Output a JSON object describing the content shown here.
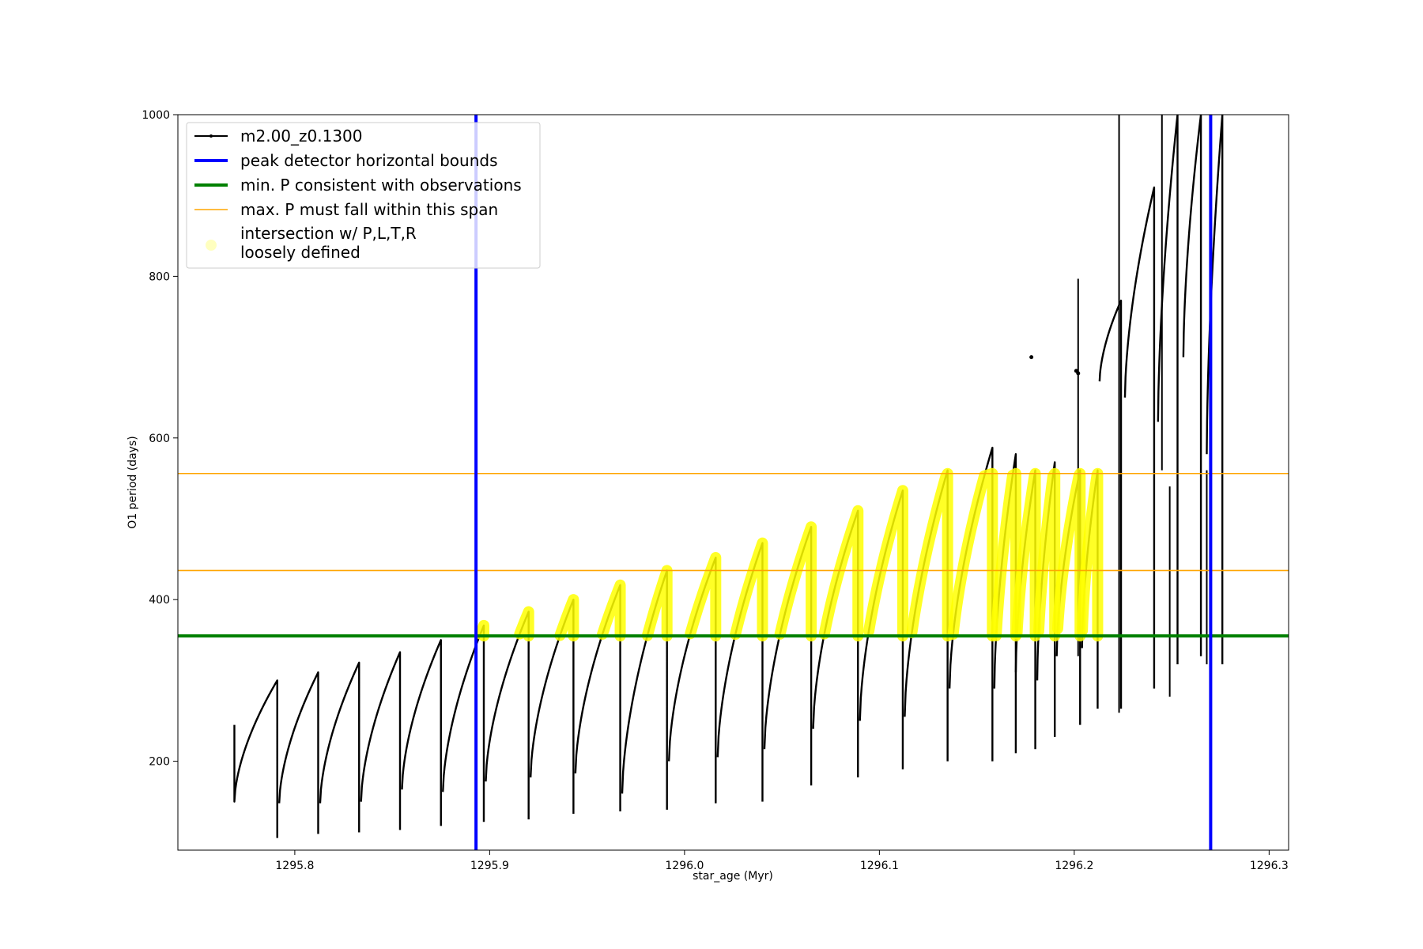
{
  "chart_data": {
    "type": "line",
    "title": "",
    "xlabel": "star_age (Myr)",
    "ylabel": "O1 period (days)",
    "xlim": [
      1295.74,
      1296.31
    ],
    "ylim": [
      90,
      1000
    ],
    "x_ticks": [
      1295.8,
      1295.9,
      1296.0,
      1296.1,
      1296.2,
      1296.3
    ],
    "x_tick_labels": [
      "1295.8",
      "1295.9",
      "1296.0",
      "1296.1",
      "1296.2",
      "1296.3"
    ],
    "y_ticks": [
      200,
      400,
      600,
      800,
      1000
    ],
    "y_tick_labels": [
      "200",
      "400",
      "600",
      "800",
      "1000"
    ],
    "grid": false,
    "legend_position": "top-left",
    "legend": [
      {
        "label": "m2.00_z0.1300",
        "style": "line-marker",
        "color": "#000000"
      },
      {
        "label": "peak detector horizontal bounds",
        "style": "thick-line",
        "color": "#0000ff"
      },
      {
        "label": "min. P consistent with observations",
        "style": "thick-line",
        "color": "#008000"
      },
      {
        "label": "max. P must fall within this span",
        "style": "thin-line",
        "color": "#ffa500"
      },
      {
        "label": "intersection w/ P,L,T,R",
        "label2": "loosely defined",
        "style": "circle-marker",
        "color": "#ffff00"
      }
    ],
    "vertical_lines": [
      {
        "x": 1295.893,
        "color": "#0000ff"
      },
      {
        "x": 1296.27,
        "color": "#0000ff"
      }
    ],
    "horizontal_lines": [
      {
        "y": 355,
        "color": "#008000"
      },
      {
        "y": 556,
        "color": "#ffa500"
      },
      {
        "y": 436,
        "color": "#ffa500"
      }
    ],
    "period_band": {
      "min": 355,
      "max": 556
    },
    "pulses": [
      {
        "x0": 1295.769,
        "x1": 1295.791,
        "y0": 150,
        "y1": 300,
        "y_start": 245,
        "y_drop": 105
      },
      {
        "x0": 1295.792,
        "x1": 1295.812,
        "y0": 148,
        "y1": 310,
        "y_drop": 110
      },
      {
        "x0": 1295.813,
        "x1": 1295.833,
        "y0": 148,
        "y1": 322,
        "y_drop": 112
      },
      {
        "x0": 1295.834,
        "x1": 1295.854,
        "y0": 150,
        "y1": 335,
        "y_drop": 115
      },
      {
        "x0": 1295.855,
        "x1": 1295.875,
        "y0": 165,
        "y1": 350,
        "y_drop": 120
      },
      {
        "x0": 1295.876,
        "x1": 1295.897,
        "y0": 162,
        "y1": 368,
        "y_drop": 125
      },
      {
        "x0": 1295.898,
        "x1": 1295.92,
        "y0": 175,
        "y1": 385,
        "y_drop": 128
      },
      {
        "x0": 1295.921,
        "x1": 1295.943,
        "y0": 180,
        "y1": 400,
        "y_drop": 135
      },
      {
        "x0": 1295.944,
        "x1": 1295.967,
        "y0": 185,
        "y1": 418,
        "y_drop": 138
      },
      {
        "x0": 1295.968,
        "x1": 1295.991,
        "y0": 160,
        "y1": 436,
        "y_drop": 140
      },
      {
        "x0": 1295.992,
        "x1": 1296.016,
        "y0": 200,
        "y1": 452,
        "y_drop": 148
      },
      {
        "x0": 1296.017,
        "x1": 1296.04,
        "y0": 205,
        "y1": 470,
        "y_drop": 150
      },
      {
        "x0": 1296.041,
        "x1": 1296.065,
        "y0": 215,
        "y1": 490,
        "y_drop": 170
      },
      {
        "x0": 1296.066,
        "x1": 1296.089,
        "y0": 240,
        "y1": 510,
        "y_drop": 180
      },
      {
        "x0": 1296.09,
        "x1": 1296.112,
        "y0": 250,
        "y1": 535,
        "y_drop": 190
      },
      {
        "x0": 1296.113,
        "x1": 1296.135,
        "y0": 255,
        "y1": 560,
        "y_drop": 200
      },
      {
        "x0": 1296.136,
        "x1": 1296.158,
        "y0": 290,
        "y1": 588,
        "y_drop": 200
      },
      {
        "x0": 1296.159,
        "x1": 1296.17,
        "y0": 290,
        "y1": 580,
        "y_drop": 210
      },
      {
        "x0": 1296.17,
        "x1": 1296.18,
        "y0": 310,
        "y1": 560,
        "y_drop": 215
      },
      {
        "x0": 1296.181,
        "x1": 1296.19,
        "y0": 300,
        "y1": 570,
        "y_drop": 230
      },
      {
        "x0": 1296.191,
        "x1": 1296.203,
        "y0": 330,
        "y1": 560,
        "y_drop": 245
      },
      {
        "x0": 1296.204,
        "x1": 1296.212,
        "y0": 340,
        "y1": 560,
        "y_drop": 265
      },
      {
        "x0": 1296.213,
        "x1": 1296.224,
        "y0": 670,
        "y1": 770,
        "y_drop": 265
      },
      {
        "x0": 1296.226,
        "x1": 1296.241,
        "y0": 650,
        "y1": 910,
        "y_drop": 290
      },
      {
        "x0": 1296.243,
        "x1": 1296.253,
        "y0": 620,
        "y1": 1000,
        "y_drop": 320
      },
      {
        "x0": 1296.256,
        "x1": 1296.265,
        "y0": 700,
        "y1": 1000,
        "y_drop": 330
      },
      {
        "x0": 1296.268,
        "x1": 1296.276,
        "y0": 580,
        "y1": 1000,
        "y_drop": 320
      }
    ],
    "scatter_points": [
      {
        "x": 1296.178,
        "y": 700
      },
      {
        "x": 1296.201,
        "y": 683
      },
      {
        "x": 1296.202,
        "y": 680
      }
    ],
    "vertical_spikes": [
      {
        "x": 1296.202,
        "y_low": 330,
        "y_high": 797
      },
      {
        "x": 1296.223,
        "y_low": 260,
        "y_high": 1000
      },
      {
        "x": 1296.245,
        "y_low": 560,
        "y_high": 1000
      },
      {
        "x": 1296.249,
        "y_low": 280,
        "y_high": 540
      },
      {
        "x": 1296.268,
        "y_low": 320,
        "y_high": 560
      }
    ]
  }
}
